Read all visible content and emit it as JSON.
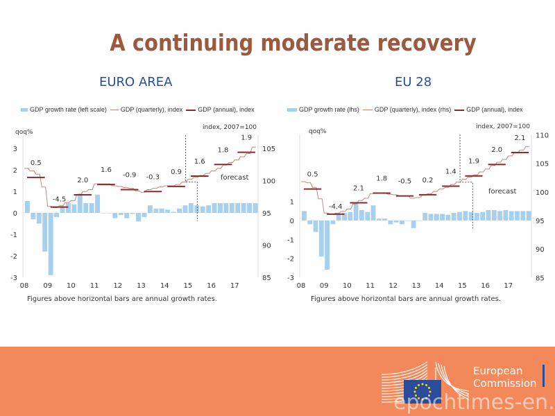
{
  "title": "A continuing moderate recovery",
  "colors": {
    "title": "#9b5a3f",
    "header": "#1f4f9e",
    "bars": "#a7d0ee",
    "quarterly": "#c0877a",
    "annual": "#8b2a2a",
    "footer": "#f3885a"
  },
  "footer": {
    "logo_text_1": "European",
    "logo_text_2": "Commission",
    "watermark": "epochtimes-en.fr"
  },
  "charts": [
    {
      "header": "EURO AREA",
      "legend": [
        "GDP growth rate (left scale)",
        "GDP (quarterly), index",
        "GDP (annual), index"
      ],
      "note": "Figures above horizontal bars are annual growth rates."
    },
    {
      "header": "EU 28",
      "legend": [
        "GDP growth rate (lhs)",
        "GDP (quarterly), index (rhs)",
        "GDP (annual), index"
      ],
      "note": "Figures above horizontal bars are annual growth rates."
    }
  ],
  "chart_data": [
    {
      "type": "bar+line",
      "title": "EURO AREA",
      "left_label": "qoq%",
      "right_label": "index, 2007=100",
      "forecast_label": "forecast",
      "left_ticks": [
        "-3",
        "-2",
        "-1",
        "0",
        "1",
        "2",
        "3"
      ],
      "right_ticks": [
        "85",
        "90",
        "95",
        "100",
        "105"
      ],
      "x_ticks": [
        "08",
        "09",
        "10",
        "11",
        "12",
        "13",
        "14",
        "15",
        "16",
        "17"
      ],
      "ylim_left": [
        -3,
        3.6
      ],
      "ylim_right": [
        85,
        106.5
      ],
      "forecast_start": "2015Q3",
      "quarters_start": "2008Q1",
      "growth_qoq": [
        0.55,
        -0.3,
        -0.5,
        -1.8,
        -2.9,
        -0.2,
        0.3,
        0.45,
        0.4,
        0.9,
        0.45,
        0.45,
        0.85,
        0.0,
        0.0,
        -0.25,
        -0.1,
        -0.25,
        -0.05,
        -0.4,
        -0.2,
        0.35,
        0.2,
        0.2,
        0.15,
        0.05,
        0.2,
        0.35,
        0.45,
        0.35,
        0.3,
        0.35,
        0.45,
        0.45,
        0.45,
        0.45,
        0.45,
        0.45,
        0.45,
        0.45
      ],
      "index_quarterly": [
        101.9,
        101.5,
        101.0,
        99.0,
        96.0,
        95.8,
        96.1,
        96.6,
        96.9,
        97.8,
        98.3,
        98.6,
        99.5,
        99.5,
        99.5,
        99.2,
        99.1,
        98.9,
        98.8,
        98.4,
        98.2,
        98.6,
        98.8,
        99.0,
        99.2,
        99.2,
        99.4,
        99.8,
        100.2,
        100.5,
        100.8,
        101.1,
        101.5,
        101.9,
        102.4,
        102.8,
        103.2,
        103.7,
        104.2,
        105.2
      ],
      "index_annual": [
        100.5,
        95.9,
        97.8,
        99.4,
        98.6,
        98.3,
        99.1,
        100.7,
        102.5,
        104.4
      ],
      "annual_growth_labels": [
        "0.5",
        "-4.5",
        "2.0",
        "1.6",
        "-0.9",
        "-0.3",
        "0.9",
        "1.6",
        "1.8",
        "1.9"
      ]
    },
    {
      "type": "bar+line",
      "title": "EU 28",
      "left_label": "qoq%",
      "right_label": "index, 2007=100",
      "forecast_label": "forecast",
      "left_ticks": [
        "-3",
        "-2",
        "-1",
        "0",
        "1"
      ],
      "right_ticks": [
        "85",
        "90",
        "95",
        "100",
        "105",
        "110"
      ],
      "x_ticks": [
        "08",
        "09",
        "10",
        "11",
        "12",
        "13",
        "14",
        "15",
        "16",
        "17"
      ],
      "ylim_left": [
        -3,
        4.5
      ],
      "ylim_right": [
        85,
        110
      ],
      "forecast_start": "2015Q3",
      "quarters_start": "2008Q1",
      "growth_qoq": [
        0.5,
        -0.2,
        -0.6,
        -1.9,
        -2.6,
        -0.2,
        0.3,
        0.4,
        0.45,
        0.9,
        0.55,
        0.45,
        0.8,
        0.1,
        0.1,
        -0.2,
        -0.1,
        -0.2,
        0.0,
        -0.4,
        0.0,
        0.4,
        0.35,
        0.35,
        0.35,
        0.3,
        0.4,
        0.45,
        0.5,
        0.45,
        0.4,
        0.45,
        0.55,
        0.55,
        0.5,
        0.55,
        0.5,
        0.5,
        0.5,
        0.5
      ],
      "index_quarterly": [
        101.8,
        101.6,
        100.8,
        98.8,
        96.3,
        96.1,
        96.3,
        96.6,
        97.0,
        97.9,
        98.5,
        98.9,
        99.7,
        99.8,
        99.8,
        99.6,
        99.5,
        99.3,
        99.3,
        98.9,
        99.0,
        99.4,
        99.7,
        100.1,
        100.5,
        100.8,
        101.3,
        101.7,
        102.2,
        102.6,
        103.0,
        103.5,
        104.0,
        104.6,
        105.2,
        105.7,
        106.3,
        106.8,
        107.3,
        107.9
      ],
      "index_annual": [
        100.5,
        96.1,
        98.1,
        99.8,
        99.3,
        99.5,
        101.0,
        102.8,
        104.8,
        106.9
      ],
      "annual_growth_labels": [
        "0.5",
        "-4.4",
        "2.1",
        "1.8",
        "-0.5",
        "0.2",
        "1.4",
        "1.9",
        "2.0",
        "2.1"
      ]
    }
  ]
}
